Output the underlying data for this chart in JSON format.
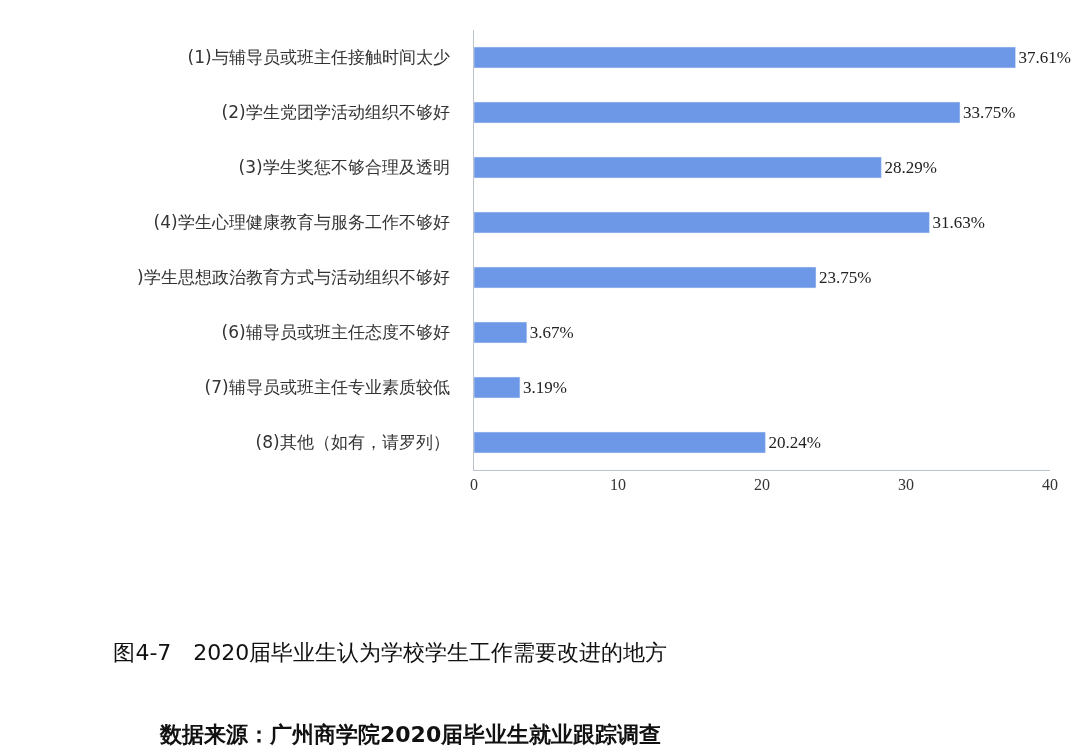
{
  "chart_data": {
    "type": "bar",
    "orientation": "horizontal",
    "title": "图4-7　2020届毕业生认为学校学生工作需要改进的地方",
    "annotations": [
      "数据来源：广州商学院2020届毕业生就业跟踪调查"
    ],
    "categories": [
      "(1)与辅导员或班主任接触时间太少",
      "(2)学生党团学活动组织不够好",
      "(3)学生奖惩不够合理及透明",
      "(4)学生心理健康教育与服务工作不够好",
      ")学生思想政治教育方式与活动组织不够好",
      "(6)辅导员或班主任态度不够好",
      "(7)辅导员或班主任专业素质较低",
      "(8)其他（如有，请罗列）"
    ],
    "values": [
      37.61,
      33.75,
      28.29,
      31.63,
      23.75,
      3.67,
      3.19,
      20.24
    ],
    "value_labels": [
      "37.61%",
      "33.75%",
      "28.29%",
      "31.63%",
      "23.75%",
      "3.67%",
      "3.19%",
      "20.24%"
    ],
    "color": "#6d98e8",
    "xlim": [
      0,
      40
    ],
    "xticks": [
      0,
      10,
      20,
      30,
      40
    ],
    "legend": false
  }
}
